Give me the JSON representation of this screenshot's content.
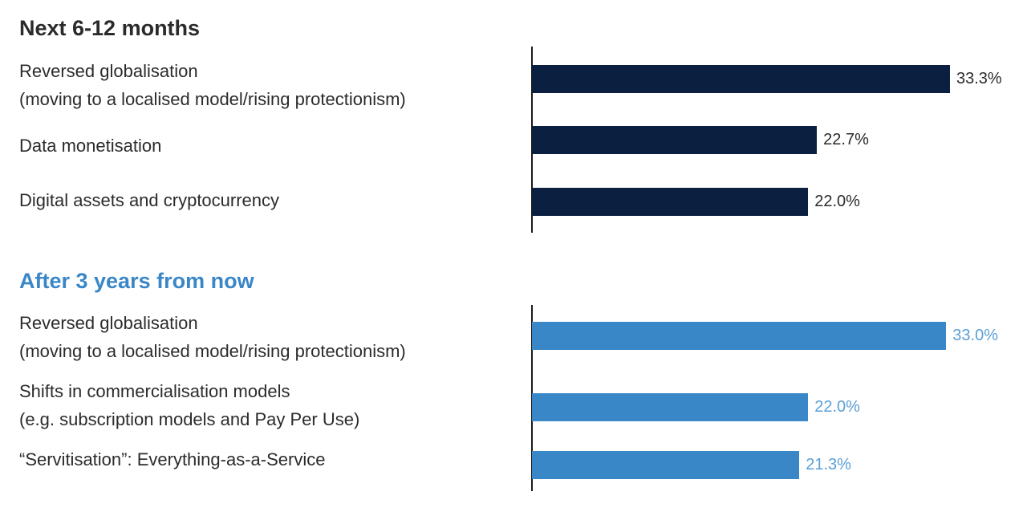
{
  "chart_data": [
    {
      "type": "bar",
      "orientation": "horizontal",
      "title": "Next 6-12 months",
      "title_color": "#2b2b2b",
      "bar_color": "#0b2040",
      "value_color": "#2b2b2b",
      "categories": [
        [
          "Reversed globalisation",
          "(moving to a localised model/rising protectionism)"
        ],
        [
          "Data monetisation"
        ],
        [
          "Digital assets and cryptocurrency"
        ]
      ],
      "values": [
        33.3,
        22.7,
        22.0
      ],
      "value_labels": [
        "33.3%",
        "22.7%",
        "22.0%"
      ],
      "unit": "%"
    },
    {
      "type": "bar",
      "orientation": "horizontal",
      "title": "After 3 years from now",
      "title_color": "#3a87c8",
      "bar_color": "#3a87c8",
      "value_color": "#5a9fd6",
      "categories": [
        [
          "Reversed globalisation",
          "(moving to a localised model/rising protectionism)"
        ],
        [
          "Shifts in commercialisation models",
          "(e.g. subscription models and Pay Per Use)"
        ],
        [
          "“Servitisation”: Everything-as-a-Service"
        ]
      ],
      "values": [
        33.0,
        22.0,
        21.3
      ],
      "value_labels": [
        "33.0%",
        "22.0%",
        "21.3%"
      ],
      "unit": "%"
    }
  ]
}
